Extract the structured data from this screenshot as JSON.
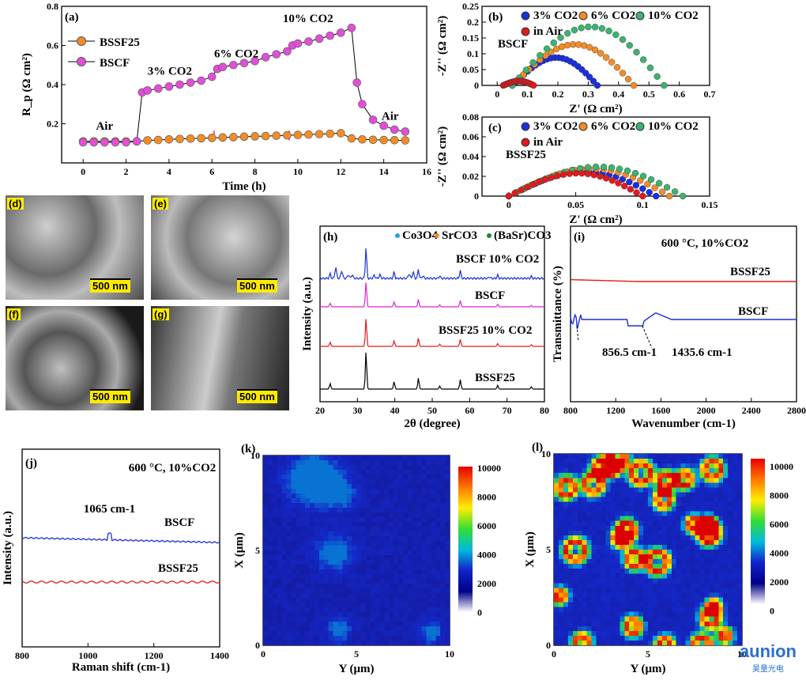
{
  "colors": {
    "bssf25": "#f28c28",
    "bscf": "#e04fd6",
    "blue": "#1a2fe0",
    "red": "#e31a1c",
    "orange": "#f28c28",
    "green": "#3cb371",
    "magenta": "#e021d4"
  },
  "panel_a": {
    "label": "(a)",
    "ylabel": "R_p (Ω cm²)",
    "xlabel": "Time (h)",
    "annotations": [
      "Air",
      "3% CO2",
      "6% CO2",
      "10% CO2",
      "Air"
    ],
    "legend": [
      "BSSF25",
      "BSCF"
    ]
  },
  "panel_b": {
    "label": "(b)",
    "sample": "BSCF",
    "legend": [
      "3% CO2",
      "6% CO2",
      "10% CO2",
      "in Air"
    ],
    "xlabel": "Z' (Ω cm²)",
    "ylabel": "-Z'' (Ω cm²)"
  },
  "panel_c": {
    "label": "(c)",
    "sample": "BSSF25",
    "legend": [
      "3% CO2",
      "6% CO2",
      "10% CO2",
      "in Air"
    ],
    "xlabel": "Z' (Ω cm²)",
    "ylabel": "-Z'' (Ω cm²)"
  },
  "sem": {
    "labels": [
      "(d)",
      "(e)",
      "(f)",
      "(g)"
    ],
    "scale": "500 nm"
  },
  "panel_h": {
    "label": "(h)",
    "legend": [
      "Co3O4",
      "SrCO3",
      "(BaSr)CO3"
    ],
    "traces": [
      "BSCF 10% CO2",
      "BSCF",
      "BSSF25 10% CO2",
      "BSSF25"
    ],
    "xlabel": "2θ (degree)",
    "ylabel": "Intensity (a.u.)"
  },
  "panel_i": {
    "label": "(i)",
    "condition": "600 °C, 10%CO2",
    "traces": [
      "BSSF25",
      "BSCF"
    ],
    "peaks": [
      "856.5 cm-1",
      "1435.6 cm-1"
    ],
    "xlabel": "Wavenumber (cm-1)",
    "ylabel": "Transmittance (%)"
  },
  "panel_j": {
    "label": "(j)",
    "condition": "600 °C, 10%CO2",
    "traces": [
      "BSCF",
      "BSSF25"
    ],
    "peak": "1065 cm-1",
    "xlabel": "Raman shift (cm-1)",
    "ylabel": "Intensity (a.u.)"
  },
  "panel_k": {
    "label": "(k)",
    "xlabel": "Y (μm)",
    "ylabel": "X (μm)"
  },
  "panel_l": {
    "label": "(l)",
    "xlabel": "Y (μm)",
    "ylabel": "X (μm)"
  },
  "colorbar_ticks": [
    "10000",
    "8000",
    "6000",
    "4000",
    "2000",
    "0"
  ],
  "logo": {
    "name": "aunion",
    "sub": "昊量光电"
  },
  "chart_data": [
    {
      "type": "line",
      "id": "a",
      "xlim": [
        -1,
        16
      ],
      "ylim": [
        0,
        0.8
      ],
      "series": [
        {
          "name": "BSSF25",
          "x": [
            0,
            0.5,
            1,
            1.5,
            2,
            2.5,
            3,
            3.5,
            4,
            4.5,
            5,
            5.5,
            6,
            6.5,
            7,
            7.5,
            8,
            8.5,
            9,
            9.5,
            10,
            10.5,
            11,
            11.5,
            12,
            12.5,
            13,
            13.5,
            14,
            14.5,
            15
          ],
          "values": [
            0.11,
            0.11,
            0.11,
            0.11,
            0.11,
            0.11,
            0.115,
            0.117,
            0.12,
            0.122,
            0.124,
            0.126,
            0.128,
            0.13,
            0.132,
            0.134,
            0.136,
            0.137,
            0.139,
            0.141,
            0.143,
            0.145,
            0.147,
            0.149,
            0.152,
            0.125,
            0.12,
            0.118,
            0.117,
            0.116,
            0.115
          ]
        },
        {
          "name": "BSCF",
          "x": [
            0,
            0.5,
            1,
            1.5,
            2,
            2.5,
            2.75,
            3,
            3.5,
            4,
            4.5,
            5,
            5.5,
            6,
            6.25,
            6.5,
            7,
            7.5,
            8,
            8.5,
            9,
            9.5,
            9.75,
            10,
            10.5,
            11,
            11.5,
            12,
            12.5,
            12.75,
            13,
            13.5,
            14,
            14.5,
            15
          ],
          "values": [
            0.105,
            0.105,
            0.105,
            0.105,
            0.105,
            0.11,
            0.36,
            0.37,
            0.38,
            0.39,
            0.4,
            0.41,
            0.42,
            0.44,
            0.48,
            0.49,
            0.5,
            0.51,
            0.52,
            0.54,
            0.555,
            0.57,
            0.6,
            0.61,
            0.62,
            0.635,
            0.65,
            0.665,
            0.69,
            0.41,
            0.3,
            0.22,
            0.19,
            0.17,
            0.16
          ]
        }
      ]
    },
    {
      "type": "scatter",
      "id": "b",
      "xlim": [
        -0.05,
        0.7
      ],
      "ylim": [
        0,
        0.25
      ],
      "series": [
        {
          "name": "3% CO2",
          "arc": [
            0.05,
            0.33,
            0.095
          ]
        },
        {
          "name": "6% CO2",
          "arc": [
            0.05,
            0.45,
            0.14
          ]
        },
        {
          "name": "10% CO2",
          "arc": [
            0.05,
            0.55,
            0.2
          ]
        },
        {
          "name": "in Air",
          "arc": [
            0.02,
            0.12,
            0.015
          ]
        }
      ]
    },
    {
      "type": "scatter",
      "id": "c",
      "xlim": [
        -0.02,
        0.15
      ],
      "ylim": [
        0,
        0.08
      ],
      "series": [
        {
          "name": "3% CO2",
          "arc": [
            0.0,
            0.11,
            0.027
          ]
        },
        {
          "name": "6% CO2",
          "arc": [
            0.0,
            0.12,
            0.03
          ]
        },
        {
          "name": "10% CO2",
          "arc": [
            0.0,
            0.13,
            0.032
          ]
        },
        {
          "name": "in Air",
          "arc": [
            0.0,
            0.1,
            0.025
          ]
        }
      ]
    }
  ]
}
